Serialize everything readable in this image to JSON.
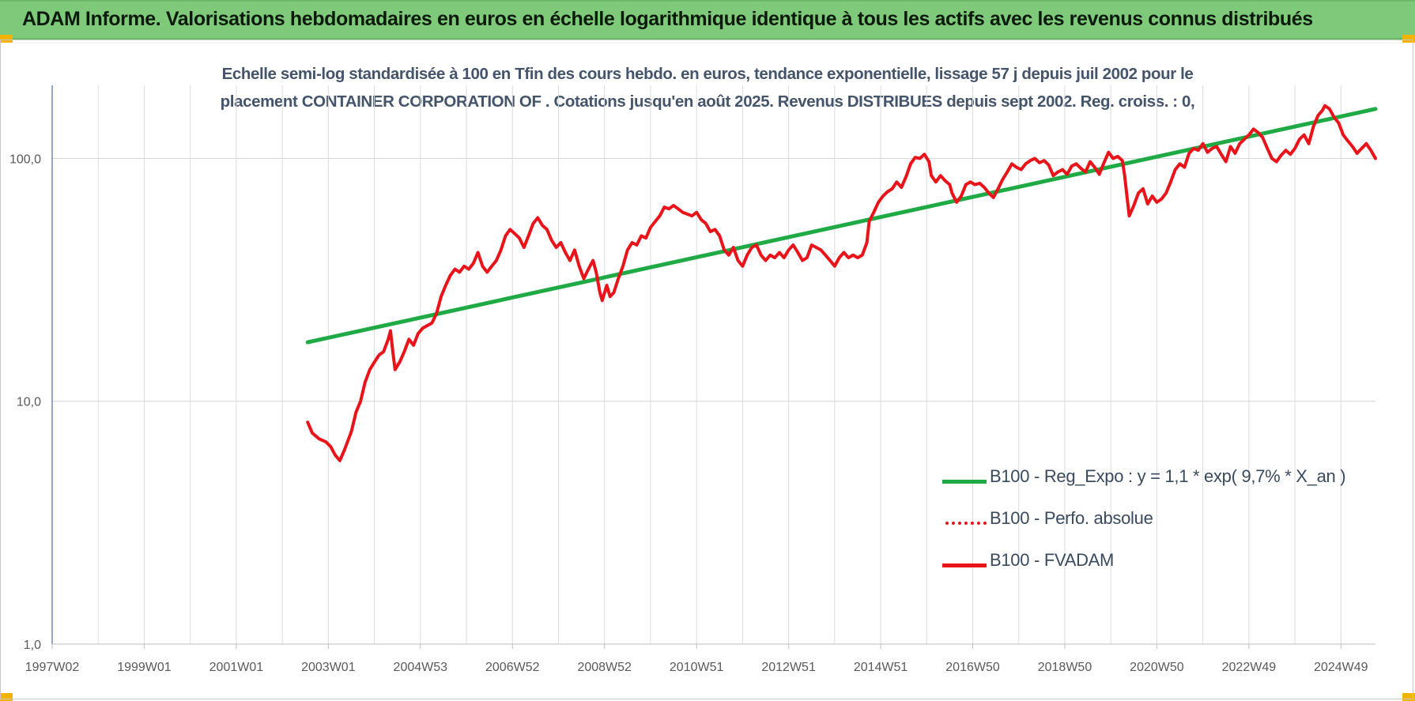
{
  "banner": {
    "title": "ADAM Informe. Valorisations hebdomadaires en euros en échelle logarithmique identique à tous les actifs avec les revenus connus distribués"
  },
  "colors": {
    "banner_bg": "#7ec97a",
    "corner": "#f2b400",
    "trend": "#1faa45",
    "fvadam": "#e8141a",
    "perfo": "#e8141a",
    "text": "#44546a"
  },
  "chart_data": {
    "type": "line",
    "title": [
      "Echelle semi-log standardisée à 100 en Tfin des cours hebdo. en euros, tendance exponentielle, lissage 57 j depuis juil 2002 pour le",
      "placement CONTAINER CORPORATION OF . Cotations jusqu'en août 2025. Revenus DISTRIBUES depuis sept 2002. Reg. croiss. : 0,"
    ],
    "y_scale": "log",
    "ylim": [
      1,
      200
    ],
    "y_ticks": [
      {
        "value": 1,
        "label": "1,0"
      },
      {
        "value": 10,
        "label": "10,0"
      },
      {
        "value": 100,
        "label": "100,0"
      }
    ],
    "x_range": [
      1997.0,
      2025.75
    ],
    "x_ticks": [
      {
        "x": 1997.0,
        "label": "1997W02"
      },
      {
        "x": 1999.0,
        "label": "1999W01"
      },
      {
        "x": 2001.0,
        "label": "2001W01"
      },
      {
        "x": 2003.0,
        "label": "2003W01"
      },
      {
        "x": 2005.0,
        "label": "2004W53"
      },
      {
        "x": 2007.0,
        "label": "2006W52"
      },
      {
        "x": 2009.0,
        "label": "2008W52"
      },
      {
        "x": 2011.0,
        "label": "2010W51"
      },
      {
        "x": 2013.0,
        "label": "2012W51"
      },
      {
        "x": 2015.0,
        "label": "2014W51"
      },
      {
        "x": 2017.0,
        "label": "2016W50"
      },
      {
        "x": 2019.0,
        "label": "2018W50"
      },
      {
        "x": 2021.0,
        "label": "2020W50"
      },
      {
        "x": 2023.0,
        "label": "2022W49"
      },
      {
        "x": 2025.0,
        "label": "2024W49"
      }
    ],
    "grid": true,
    "legend_position": "bottom-right",
    "series": [
      {
        "name": "B100 - Reg_Expo : y = 1,1 * exp( 9,7% *  X_an )",
        "style": "solid",
        "color": "#1faa45",
        "points": [
          [
            2002.55,
            17.5
          ],
          [
            2025.75,
            160
          ]
        ]
      },
      {
        "name": "B100 - Perfo. absolue",
        "style": "dotted",
        "color": "#e8141a",
        "points": []
      },
      {
        "name": "B100 - FVADAM",
        "style": "solid",
        "color": "#e8141a",
        "points": [
          [
            2002.55,
            8.2
          ],
          [
            2002.65,
            7.4
          ],
          [
            2002.8,
            7.0
          ],
          [
            2002.95,
            6.8
          ],
          [
            2003.05,
            6.5
          ],
          [
            2003.15,
            6.0
          ],
          [
            2003.25,
            5.7
          ],
          [
            2003.35,
            6.3
          ],
          [
            2003.5,
            7.5
          ],
          [
            2003.6,
            9.0
          ],
          [
            2003.7,
            10.0
          ],
          [
            2003.8,
            12.0
          ],
          [
            2003.9,
            13.5
          ],
          [
            2004.0,
            14.5
          ],
          [
            2004.1,
            15.5
          ],
          [
            2004.2,
            16.0
          ],
          [
            2004.3,
            18.0
          ],
          [
            2004.35,
            19.5
          ],
          [
            2004.4,
            16.0
          ],
          [
            2004.45,
            13.5
          ],
          [
            2004.55,
            14.5
          ],
          [
            2004.65,
            16.0
          ],
          [
            2004.75,
            18.0
          ],
          [
            2004.85,
            17.0
          ],
          [
            2004.95,
            19.0
          ],
          [
            2005.05,
            20.0
          ],
          [
            2005.15,
            20.5
          ],
          [
            2005.25,
            21.0
          ],
          [
            2005.35,
            23.0
          ],
          [
            2005.45,
            27.0
          ],
          [
            2005.55,
            30.0
          ],
          [
            2005.65,
            33.0
          ],
          [
            2005.75,
            35.0
          ],
          [
            2005.85,
            34.0
          ],
          [
            2005.95,
            36.0
          ],
          [
            2006.05,
            35.0
          ],
          [
            2006.15,
            37.0
          ],
          [
            2006.25,
            41.0
          ],
          [
            2006.35,
            36.0
          ],
          [
            2006.45,
            34.0
          ],
          [
            2006.55,
            36.0
          ],
          [
            2006.65,
            38.0
          ],
          [
            2006.75,
            42.0
          ],
          [
            2006.85,
            48.0
          ],
          [
            2006.95,
            51.0
          ],
          [
            2007.05,
            49.0
          ],
          [
            2007.15,
            47.0
          ],
          [
            2007.25,
            43.0
          ],
          [
            2007.35,
            48.0
          ],
          [
            2007.45,
            54.0
          ],
          [
            2007.55,
            57.0
          ],
          [
            2007.65,
            53.0
          ],
          [
            2007.75,
            51.0
          ],
          [
            2007.85,
            46.0
          ],
          [
            2007.95,
            43.0
          ],
          [
            2008.05,
            45.0
          ],
          [
            2008.15,
            41.0
          ],
          [
            2008.25,
            38.0
          ],
          [
            2008.35,
            42.0
          ],
          [
            2008.45,
            36.0
          ],
          [
            2008.55,
            32.0
          ],
          [
            2008.65,
            35.0
          ],
          [
            2008.75,
            38.0
          ],
          [
            2008.82,
            34.0
          ],
          [
            2008.9,
            28.0
          ],
          [
            2008.95,
            26.0
          ],
          [
            2009.05,
            30.0
          ],
          [
            2009.12,
            27.0
          ],
          [
            2009.2,
            28.0
          ],
          [
            2009.3,
            32.0
          ],
          [
            2009.4,
            36.0
          ],
          [
            2009.5,
            42.0
          ],
          [
            2009.6,
            45.0
          ],
          [
            2009.7,
            44.0
          ],
          [
            2009.8,
            48.0
          ],
          [
            2009.9,
            47.0
          ],
          [
            2010.0,
            52.0
          ],
          [
            2010.1,
            55.0
          ],
          [
            2010.2,
            58.0
          ],
          [
            2010.3,
            63.0
          ],
          [
            2010.4,
            62.0
          ],
          [
            2010.5,
            64.0
          ],
          [
            2010.6,
            62.0
          ],
          [
            2010.7,
            60.0
          ],
          [
            2010.8,
            59.0
          ],
          [
            2010.9,
            58.0
          ],
          [
            2011.0,
            60.0
          ],
          [
            2011.1,
            56.0
          ],
          [
            2011.2,
            54.0
          ],
          [
            2011.3,
            50.0
          ],
          [
            2011.4,
            51.0
          ],
          [
            2011.5,
            48.0
          ],
          [
            2011.6,
            42.0
          ],
          [
            2011.7,
            40.0
          ],
          [
            2011.8,
            43.0
          ],
          [
            2011.9,
            38.0
          ],
          [
            2012.0,
            36.0
          ],
          [
            2012.1,
            40.0
          ],
          [
            2012.2,
            43.0
          ],
          [
            2012.3,
            44.0
          ],
          [
            2012.4,
            40.0
          ],
          [
            2012.5,
            38.0
          ],
          [
            2012.6,
            40.0
          ],
          [
            2012.7,
            39.0
          ],
          [
            2012.8,
            41.0
          ],
          [
            2012.9,
            39.0
          ],
          [
            2013.0,
            42.0
          ],
          [
            2013.1,
            44.0
          ],
          [
            2013.2,
            41.0
          ],
          [
            2013.3,
            38.0
          ],
          [
            2013.4,
            39.0
          ],
          [
            2013.5,
            44.0
          ],
          [
            2013.6,
            43.0
          ],
          [
            2013.7,
            42.0
          ],
          [
            2013.8,
            40.0
          ],
          [
            2013.9,
            38.0
          ],
          [
            2014.0,
            36.0
          ],
          [
            2014.1,
            39.0
          ],
          [
            2014.2,
            41.0
          ],
          [
            2014.3,
            39.0
          ],
          [
            2014.4,
            40.0
          ],
          [
            2014.5,
            39.0
          ],
          [
            2014.6,
            40.0
          ],
          [
            2014.7,
            45.0
          ],
          [
            2014.75,
            55.0
          ],
          [
            2014.85,
            60.0
          ],
          [
            2014.95,
            66.0
          ],
          [
            2015.05,
            70.0
          ],
          [
            2015.15,
            73.0
          ],
          [
            2015.25,
            75.0
          ],
          [
            2015.35,
            80.0
          ],
          [
            2015.45,
            76.0
          ],
          [
            2015.55,
            84.0
          ],
          [
            2015.65,
            95.0
          ],
          [
            2015.75,
            101.0
          ],
          [
            2015.85,
            100.0
          ],
          [
            2015.95,
            104.0
          ],
          [
            2016.05,
            97.0
          ],
          [
            2016.1,
            85.0
          ],
          [
            2016.2,
            80.0
          ],
          [
            2016.3,
            85.0
          ],
          [
            2016.4,
            81.0
          ],
          [
            2016.5,
            78.0
          ],
          [
            2016.55,
            72.0
          ],
          [
            2016.65,
            66.0
          ],
          [
            2016.75,
            70.0
          ],
          [
            2016.85,
            78.0
          ],
          [
            2016.95,
            80.0
          ],
          [
            2017.05,
            78.0
          ],
          [
            2017.15,
            79.0
          ],
          [
            2017.25,
            76.0
          ],
          [
            2017.35,
            72.0
          ],
          [
            2017.45,
            69.0
          ],
          [
            2017.55,
            75.0
          ],
          [
            2017.65,
            82.0
          ],
          [
            2017.75,
            88.0
          ],
          [
            2017.85,
            95.0
          ],
          [
            2017.95,
            92.0
          ],
          [
            2018.05,
            90.0
          ],
          [
            2018.15,
            95.0
          ],
          [
            2018.25,
            98.0
          ],
          [
            2018.35,
            100.0
          ],
          [
            2018.45,
            96.0
          ],
          [
            2018.55,
            98.0
          ],
          [
            2018.65,
            94.0
          ],
          [
            2018.75,
            85.0
          ],
          [
            2018.85,
            88.0
          ],
          [
            2018.95,
            90.0
          ],
          [
            2019.05,
            86.0
          ],
          [
            2019.15,
            93.0
          ],
          [
            2019.25,
            95.0
          ],
          [
            2019.35,
            91.0
          ],
          [
            2019.45,
            88.0
          ],
          [
            2019.55,
            97.0
          ],
          [
            2019.65,
            92.0
          ],
          [
            2019.75,
            86.0
          ],
          [
            2019.85,
            96.0
          ],
          [
            2019.95,
            106.0
          ],
          [
            2020.05,
            100.0
          ],
          [
            2020.15,
            102.0
          ],
          [
            2020.25,
            98.0
          ],
          [
            2020.3,
            85.0
          ],
          [
            2020.35,
            70.0
          ],
          [
            2020.4,
            58.0
          ],
          [
            2020.5,
            64.0
          ],
          [
            2020.6,
            72.0
          ],
          [
            2020.7,
            75.0
          ],
          [
            2020.8,
            65.0
          ],
          [
            2020.9,
            70.0
          ],
          [
            2021.0,
            66.0
          ],
          [
            2021.1,
            68.0
          ],
          [
            2021.2,
            72.0
          ],
          [
            2021.3,
            80.0
          ],
          [
            2021.4,
            90.0
          ],
          [
            2021.5,
            95.0
          ],
          [
            2021.6,
            92.0
          ],
          [
            2021.7,
            105.0
          ],
          [
            2021.8,
            110.0
          ],
          [
            2021.9,
            108.0
          ],
          [
            2022.0,
            115.0
          ],
          [
            2022.1,
            106.0
          ],
          [
            2022.2,
            110.0
          ],
          [
            2022.3,
            112.0
          ],
          [
            2022.4,
            104.0
          ],
          [
            2022.5,
            97.0
          ],
          [
            2022.6,
            112.0
          ],
          [
            2022.7,
            105.0
          ],
          [
            2022.8,
            115.0
          ],
          [
            2022.9,
            120.0
          ],
          [
            2023.0,
            125.0
          ],
          [
            2023.1,
            132.0
          ],
          [
            2023.2,
            128.0
          ],
          [
            2023.3,
            122.0
          ],
          [
            2023.4,
            110.0
          ],
          [
            2023.5,
            100.0
          ],
          [
            2023.6,
            97.0
          ],
          [
            2023.7,
            103.0
          ],
          [
            2023.8,
            108.0
          ],
          [
            2023.9,
            104.0
          ],
          [
            2024.0,
            110.0
          ],
          [
            2024.1,
            120.0
          ],
          [
            2024.2,
            125.0
          ],
          [
            2024.3,
            115.0
          ],
          [
            2024.4,
            135.0
          ],
          [
            2024.5,
            150.0
          ],
          [
            2024.6,
            158.0
          ],
          [
            2024.65,
            165.0
          ],
          [
            2024.75,
            160.0
          ],
          [
            2024.85,
            148.0
          ],
          [
            2024.95,
            140.0
          ],
          [
            2025.05,
            125.0
          ],
          [
            2025.15,
            118.0
          ],
          [
            2025.25,
            112.0
          ],
          [
            2025.35,
            105.0
          ],
          [
            2025.45,
            110.0
          ],
          [
            2025.55,
            115.0
          ],
          [
            2025.65,
            108.0
          ],
          [
            2025.75,
            100.0
          ]
        ]
      }
    ]
  }
}
